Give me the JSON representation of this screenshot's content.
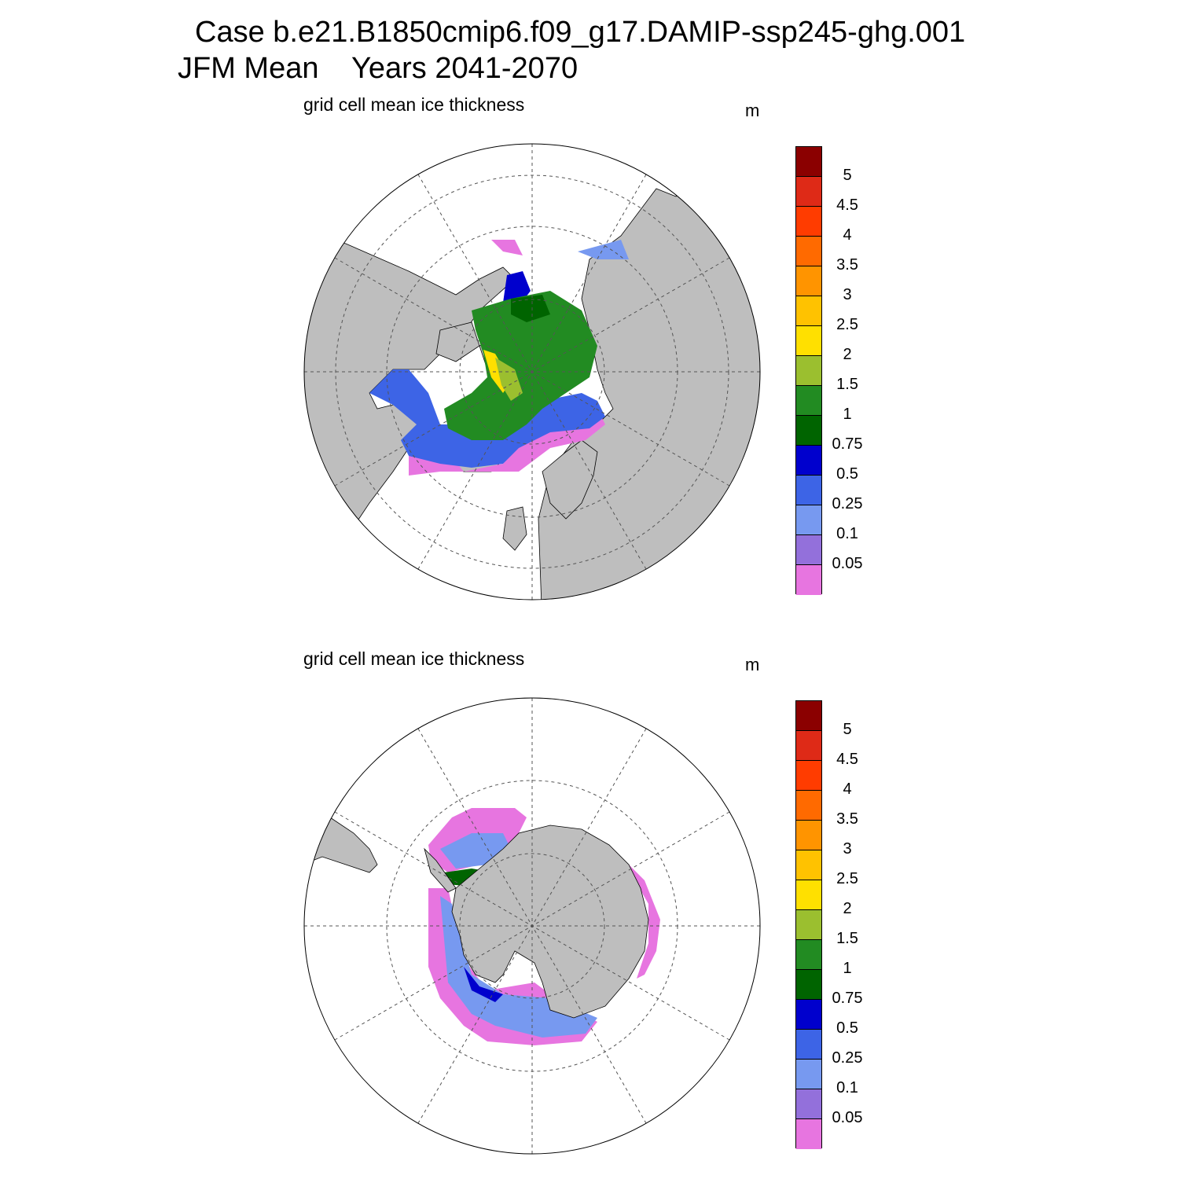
{
  "header": {
    "case_line": "Case b.e21.B1850cmip6.f09_g17.DAMIP-ssp245-ghg.001",
    "period_line": "JFM Mean    Years 2041-2070"
  },
  "panels": [
    {
      "id": "nh",
      "title": "grid cell mean ice thickness",
      "units": "m",
      "hemisphere": "north"
    },
    {
      "id": "sh",
      "title": "grid cell mean ice thickness",
      "units": "m",
      "hemisphere": "south"
    }
  ],
  "colorbar": {
    "labels": [
      "5",
      "4.5",
      "4",
      "3.5",
      "3",
      "2.5",
      "2",
      "1.5",
      "1",
      "0.75",
      "0.5",
      "0.25",
      "0.1",
      "0.05"
    ],
    "colors": [
      "#8b0000",
      "#de2a17",
      "#ff3c00",
      "#ff6a00",
      "#ff9400",
      "#ffc200",
      "#ffe000",
      "#9bbf2f",
      "#228b22",
      "#006400",
      "#0000cd",
      "#3d64e6",
      "#7799f0",
      "#9370db",
      "#e775e0"
    ]
  },
  "map_colors": {
    "land": "#bebebe",
    "ocean": "#ffffff",
    "grid": "#555555"
  }
}
